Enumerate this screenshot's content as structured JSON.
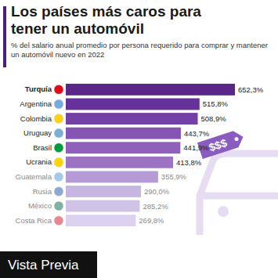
{
  "chart_data": {
    "type": "bar",
    "orientation": "horizontal",
    "title": "Los países más caros para tener un automóvil",
    "subtitle": "% del salario anual promedio por persona requerido para comprar y mantener un automóvil nuevo en 2022",
    "categories": [
      "Turquía",
      "Argentina",
      "Colombia",
      "Uruguay",
      "Brasil",
      "Ucrania",
      "Guatemala",
      "Rusia",
      "México",
      "Costa Rica"
    ],
    "values": [
      652.3,
      515.8,
      508.9,
      443.7,
      441.9,
      413.8,
      355.9,
      290.0,
      285.2,
      269.8
    ],
    "value_labels": [
      "652,3%",
      "515,8%",
      "508,9%",
      "443,7%",
      "441,9%",
      "413,8%",
      "355,9%",
      "290,0%",
      "285,2%",
      "269,8%"
    ],
    "colors": [
      "#5a2788",
      "#66319a",
      "#7340a6",
      "#8555b3",
      "#8f61bb",
      "#9c73c3",
      "#b49bd5",
      "#c7b6e2",
      "#d1c3e8",
      "#dcd1ee"
    ],
    "xlim": [
      0,
      652.3
    ],
    "data_labels": true,
    "tick_labels": false,
    "grid": false,
    "annotations": [
      "$$$",
      "Vista Previa"
    ]
  }
}
